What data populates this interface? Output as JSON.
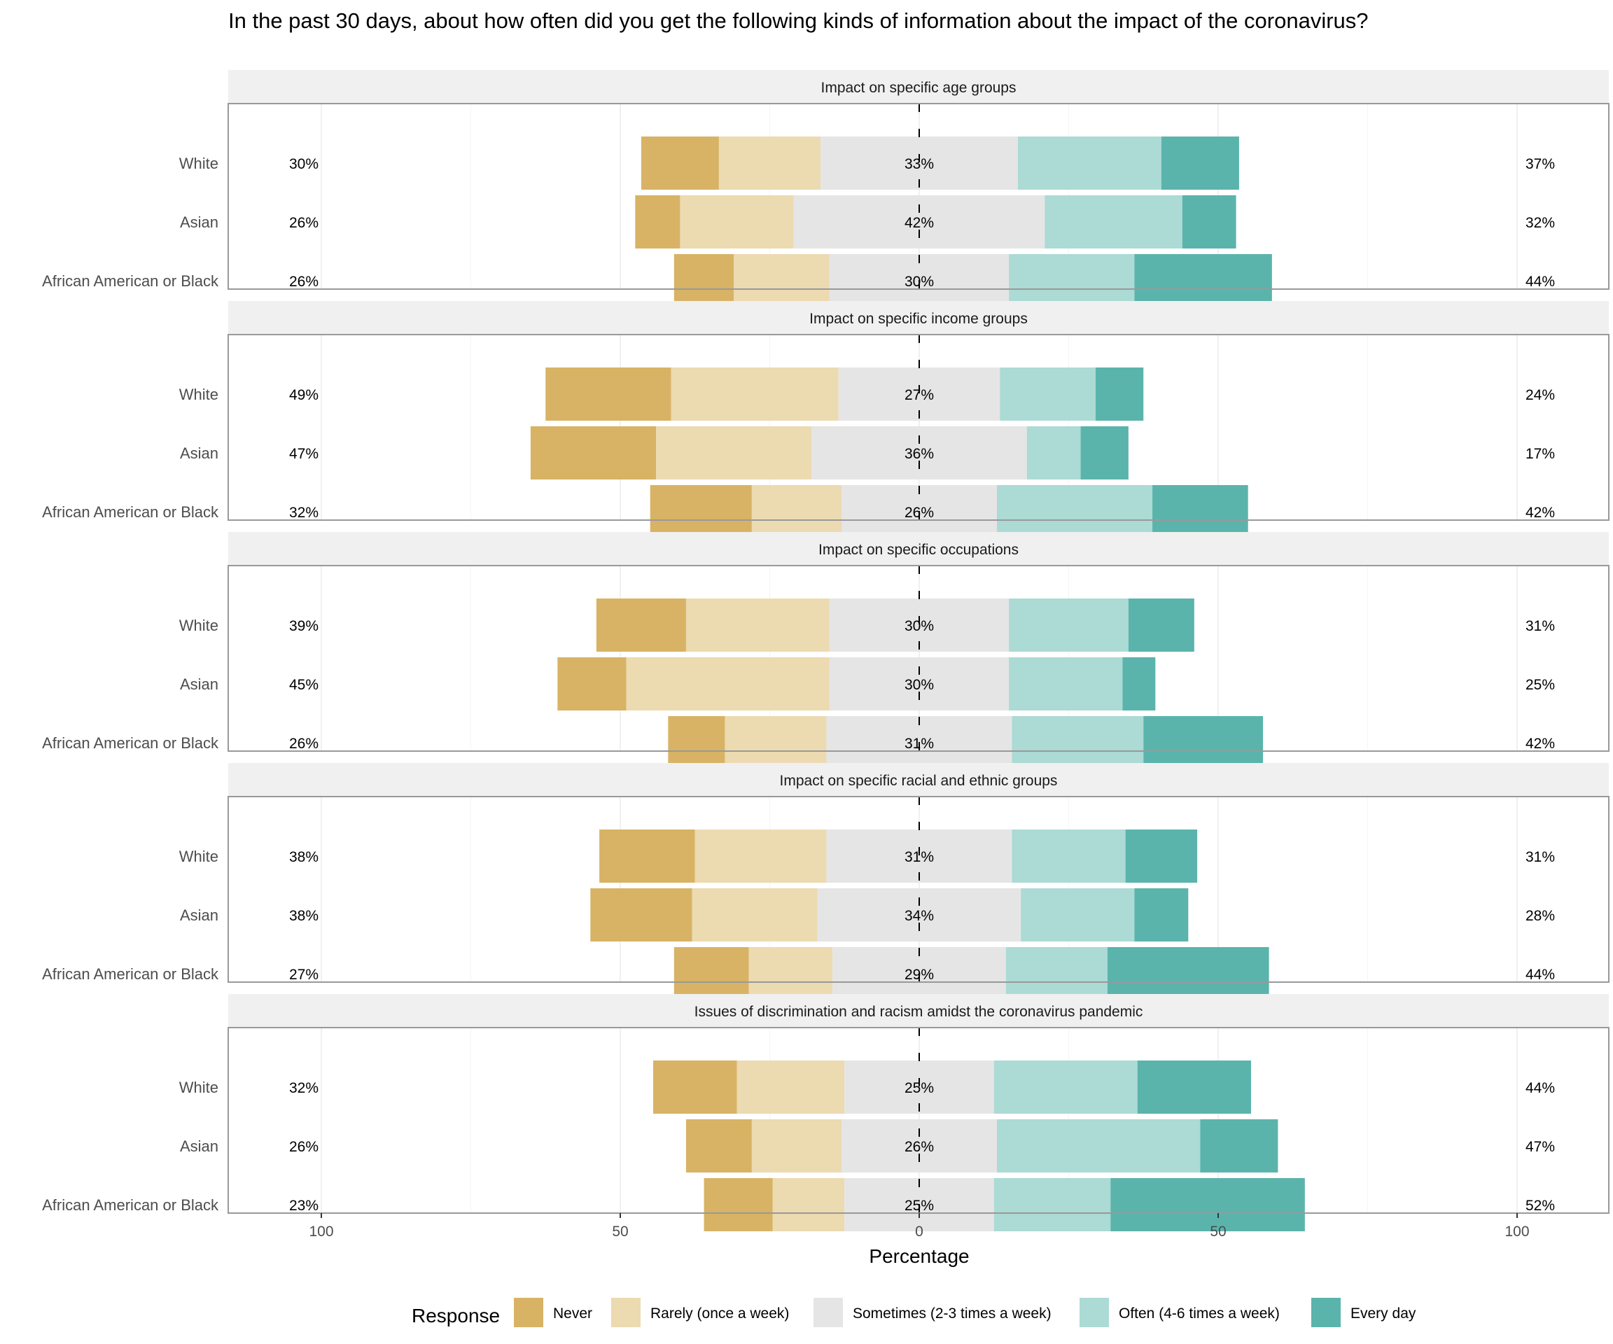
{
  "chart_data": {
    "type": "bar",
    "subtype": "diverging-stacked-likert",
    "title": "In the past 30 days, about how often did you get the following kinds of information about the impact of the coronavirus?",
    "xlabel": "Percentage",
    "xlim": [
      -100,
      100
    ],
    "x_ticks": [
      -100,
      -50,
      0,
      50,
      100
    ],
    "x_tick_labels": [
      "100",
      "50",
      "0",
      "50",
      "100"
    ],
    "legend": {
      "title": "Response",
      "position": "bottom",
      "items": [
        "Never",
        "Rarely (once a week)",
        "Sometimes (2-3 times a week)",
        "Often (4-6 times a week)",
        "Every day"
      ]
    },
    "colors": [
      "#d8b365",
      "#ecdab1",
      "#e5e5e5",
      "#acdad5",
      "#5ab4ac"
    ],
    "facets": [
      {
        "title": "Impact on specific age groups",
        "rows": [
          {
            "label": "White",
            "values": [
              13,
              17,
              33,
              24,
              13
            ],
            "left": "30%",
            "center": "33%",
            "right": "37%"
          },
          {
            "label": "Asian",
            "values": [
              7.5,
              19,
              42,
              23,
              9
            ],
            "left": "26%",
            "center": "42%",
            "right": "32%"
          },
          {
            "label": "African American or Black",
            "values": [
              10,
              16,
              30,
              21,
              23
            ],
            "left": "26%",
            "center": "30%",
            "right": "44%"
          }
        ]
      },
      {
        "title": "Impact on specific income groups",
        "rows": [
          {
            "label": "White",
            "values": [
              21,
              28,
              27,
              16,
              8
            ],
            "left": "49%",
            "center": "27%",
            "right": "24%"
          },
          {
            "label": "Asian",
            "values": [
              21,
              26,
              36,
              9,
              8
            ],
            "left": "47%",
            "center": "36%",
            "right": "17%"
          },
          {
            "label": "African American or Black",
            "values": [
              17,
              15,
              26,
              26,
              16
            ],
            "left": "32%",
            "center": "26%",
            "right": "42%"
          }
        ]
      },
      {
        "title": "Impact on specific occupations",
        "rows": [
          {
            "label": "White",
            "values": [
              15,
              24,
              30,
              20,
              11
            ],
            "left": "39%",
            "center": "30%",
            "right": "31%"
          },
          {
            "label": "Asian",
            "values": [
              11.5,
              34,
              30,
              19,
              5.5
            ],
            "left": "45%",
            "center": "30%",
            "right": "25%"
          },
          {
            "label": "African American or Black",
            "values": [
              9.5,
              17,
              31,
              22,
              20
            ],
            "left": "26%",
            "center": "31%",
            "right": "42%"
          }
        ]
      },
      {
        "title": "Impact on specific racial and ethnic groups",
        "rows": [
          {
            "label": "White",
            "values": [
              16,
              22,
              31,
              19,
              12
            ],
            "left": "38%",
            "center": "31%",
            "right": "31%"
          },
          {
            "label": "Asian",
            "values": [
              17,
              21,
              34,
              19,
              9
            ],
            "left": "38%",
            "center": "34%",
            "right": "28%"
          },
          {
            "label": "African American or Black",
            "values": [
              12.5,
              14,
              29,
              17,
              27
            ],
            "left": "27%",
            "center": "29%",
            "right": "44%"
          }
        ]
      },
      {
        "title": "Issues of discrimination and racism amidst the coronavirus pandemic",
        "rows": [
          {
            "label": "White",
            "values": [
              14,
              18,
              25,
              24,
              19
            ],
            "left": "32%",
            "center": "25%",
            "right": "44%"
          },
          {
            "label": "Asian",
            "values": [
              11,
              15,
              26,
              34,
              13
            ],
            "left": "26%",
            "center": "26%",
            "right": "47%"
          },
          {
            "label": "African American or Black",
            "values": [
              11.5,
              12,
              25,
              19.5,
              32.5
            ],
            "left": "23%",
            "center": "25%",
            "right": "52%"
          }
        ]
      }
    ]
  }
}
